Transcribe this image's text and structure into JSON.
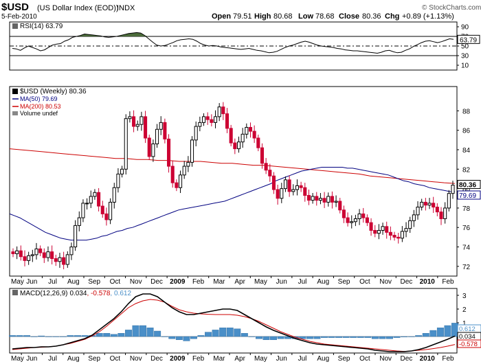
{
  "header": {
    "symbol": "$USD",
    "name": "(US Dollar Index (EOD))",
    "exchange": "INDX",
    "date": "5-Feb-2010",
    "watermark": "© StockCharts.com",
    "open_label": "Open",
    "open": "79.51",
    "high_label": "High",
    "high": "80.68",
    "low_label": "Low",
    "low": "78.68",
    "close_label": "Close",
    "close": "80.36",
    "chg_label": "Chg",
    "chg": "+0.89 (+1.13%)"
  },
  "chart_data": [
    {
      "type": "line",
      "panel": "rsi",
      "label": "RSI(14) 63.79",
      "ylim": [
        0,
        100
      ],
      "ticks": [
        "90",
        "70",
        "50",
        "30",
        "10"
      ],
      "tick_values": [
        90,
        70,
        50,
        30,
        10
      ],
      "guides": [
        70,
        50,
        30
      ],
      "current_label": "63.79",
      "current": 63.79,
      "values": [
        45,
        44,
        41,
        46,
        50,
        47,
        44,
        40,
        42,
        47,
        52,
        54,
        55,
        60,
        63,
        68,
        70,
        72,
        75,
        74,
        73,
        72,
        71,
        69,
        68,
        69,
        70,
        72,
        74,
        76,
        77,
        78,
        77,
        72,
        65,
        58,
        52,
        50,
        51,
        54,
        57,
        61,
        63,
        64,
        65,
        64,
        60,
        55,
        52,
        50,
        51,
        50,
        48,
        47,
        46,
        45,
        44,
        43,
        44,
        45,
        43,
        41,
        40,
        38,
        36,
        37,
        39,
        43,
        47,
        50,
        52,
        55,
        58,
        60,
        58,
        55,
        52,
        50,
        49,
        48,
        47,
        45,
        44,
        42,
        41,
        40,
        40,
        39,
        38,
        37,
        36,
        35,
        37,
        40,
        41,
        38,
        36,
        37,
        41,
        44,
        49,
        53,
        57,
        60,
        61,
        59,
        57,
        59,
        62,
        65,
        63.79
      ],
      "fill_above": 70,
      "color": "#000000",
      "fill_color": "#4b6b3a"
    },
    {
      "type": "candlestick",
      "panel": "price",
      "title": "$USD (Weekly) 80.36",
      "legend": [
        {
          "label": "MA(50) 79.69",
          "color": "#000080"
        },
        {
          "label": "MA(200) 80.53",
          "color": "#cc0000"
        },
        {
          "label": "Volume undef",
          "color": "#000000"
        }
      ],
      "ylim": [
        71,
        90.5
      ],
      "y_ticks": [
        "88",
        "86",
        "84",
        "82",
        "80",
        "78",
        "76",
        "74",
        "72"
      ],
      "y_tick_values": [
        88,
        86,
        84,
        82,
        80,
        78,
        76,
        74,
        72
      ],
      "close_tag": "80.36",
      "close_tag_value": 80.36,
      "ma50_tag": "79.69",
      "ma50_tag_value": 79.69,
      "bar_up_color": "#000000",
      "bar_down_color": "#cc0033",
      "closes": [
        73.3,
        73.6,
        73.0,
        72.6,
        73.1,
        73.2,
        73.8,
        73.4,
        72.9,
        73.5,
        72.8,
        72.5,
        72.9,
        72.2,
        73.2,
        74.0,
        76.2,
        77.0,
        78.5,
        78.5,
        79.2,
        79.6,
        78.2,
        77.4,
        76.8,
        78.6,
        80.1,
        81.5,
        82.0,
        87.2,
        87.4,
        86.4,
        86.6,
        87.4,
        85.2,
        83.3,
        84.6,
        86.1,
        86.8,
        85.1,
        82.3,
        80.6,
        80.1,
        81.4,
        82.3,
        82.7,
        85.0,
        86.4,
        86.8,
        87.4,
        87.1,
        86.8,
        87.4,
        88.4,
        87.7,
        86.2,
        84.7,
        84.1,
        84.8,
        85.6,
        86.3,
        85.9,
        85.2,
        84.2,
        82.6,
        81.9,
        81.3,
        79.9,
        79.0,
        80.0,
        80.9,
        79.7,
        79.9,
        80.3,
        80.1,
        79.3,
        78.8,
        79.2,
        78.8,
        79.0,
        78.6,
        79.2,
        78.6,
        78.7,
        77.8,
        77.0,
        76.5,
        76.6,
        76.9,
        77.4,
        77.0,
        76.5,
        75.7,
        75.4,
        75.7,
        76.1,
        75.5,
        75.2,
        75.0,
        74.9,
        75.6,
        75.9,
        76.7,
        77.3,
        78.1,
        78.6,
        78.3,
        78.5,
        78.1,
        77.6,
        76.9,
        78.0,
        79.5,
        80.36
      ],
      "ma50": [
        77.4,
        77.2,
        77.0,
        76.7,
        76.4,
        76.1,
        75.8,
        75.5,
        75.3,
        75.1,
        74.9,
        74.8,
        74.7,
        74.7,
        74.7,
        74.7,
        74.8,
        74.9,
        75.1,
        75.2,
        75.4,
        75.6,
        75.7,
        75.9,
        76.0,
        76.2,
        76.4,
        76.6,
        76.8,
        77.0,
        77.2,
        77.4,
        77.6,
        77.8,
        77.9,
        78.0,
        78.1,
        78.2,
        78.3,
        78.4,
        78.5,
        78.6,
        78.7,
        78.9,
        79.1,
        79.3,
        79.5,
        79.7,
        79.9,
        80.1,
        80.3,
        80.5,
        80.8,
        81.0,
        81.2,
        81.4,
        81.6,
        81.8,
        81.9,
        82.0,
        82.1,
        82.2,
        82.2,
        82.2,
        82.2,
        82.2,
        82.1,
        82.1,
        82.0,
        81.9,
        81.8,
        81.7,
        81.6,
        81.5,
        81.4,
        81.2,
        81.0,
        80.8,
        80.7,
        80.5,
        80.4,
        80.3,
        80.1,
        80.0,
        79.9,
        79.8,
        79.7,
        79.69
      ],
      "ma200": [
        84.1,
        84.0,
        83.9,
        83.8,
        83.7,
        83.6,
        83.5,
        83.4,
        83.3,
        83.2,
        83.1,
        83.1,
        83.0,
        83.0,
        82.9,
        82.9,
        82.8,
        82.8,
        82.8,
        82.7,
        82.6,
        82.6,
        82.5,
        82.4,
        82.4,
        82.3,
        82.2,
        82.1,
        82.0,
        81.9,
        81.8,
        81.7,
        81.6,
        81.5,
        81.3,
        81.2,
        81.1,
        81.0,
        80.9,
        80.8,
        80.7,
        80.6,
        80.53
      ],
      "x_ticks": [
        "May",
        "Jun",
        "Jul",
        "Aug",
        "Sep",
        "Oct",
        "Nov",
        "Dec",
        "2009",
        "Feb",
        "Mar",
        "Apr",
        "May",
        "Jun",
        "Jul",
        "Aug",
        "Sep",
        "Oct",
        "Nov",
        "Dec",
        "2010",
        "Feb"
      ],
      "bold_ticks": [
        "2009",
        "2010"
      ]
    },
    {
      "type": "line",
      "panel": "macd",
      "label_prefix": "MACD(12,26,9)",
      "label_macd": "0.034",
      "label_signal": ", -0.578",
      "label_hist": ", 0.612",
      "ylim": [
        -1.2,
        3.5
      ],
      "ticks": [
        "3",
        "2",
        "1"
      ],
      "tick_values": [
        3,
        2,
        1
      ],
      "zero_tick": "0",
      "tags": [
        "0.612",
        "0.034",
        "-0.578"
      ],
      "tag_values": [
        0.612,
        0.034,
        -0.578
      ],
      "macd_values": [
        -0.9,
        -0.85,
        -0.8,
        -0.8,
        -0.75,
        -0.75,
        -0.7,
        -0.6,
        -0.45,
        -0.3,
        -0.15,
        0.1,
        0.5,
        0.9,
        1.3,
        1.8,
        2.4,
        2.9,
        3.1,
        3.1,
        2.9,
        2.5,
        2.1,
        1.8,
        1.6,
        1.6,
        1.7,
        1.8,
        1.9,
        2.0,
        2.0,
        1.9,
        1.6,
        1.3,
        1.0,
        0.7,
        0.45,
        0.25,
        0.05,
        -0.15,
        -0.3,
        -0.45,
        -0.55,
        -0.6,
        -0.65,
        -0.7,
        -0.75,
        -0.8,
        -0.85,
        -0.9,
        -1.0,
        -1.05,
        -1.1,
        -1.1,
        -1.1,
        -1.05,
        -0.95,
        -0.8,
        -0.6,
        -0.4,
        -0.2,
        0.034
      ],
      "signal_values": [
        -0.95,
        -0.9,
        -0.85,
        -0.8,
        -0.78,
        -0.75,
        -0.7,
        -0.6,
        -0.5,
        -0.35,
        -0.2,
        0.05,
        0.35,
        0.75,
        1.2,
        1.65,
        2.1,
        2.4,
        2.6,
        2.7,
        2.65,
        2.5,
        2.2,
        1.95,
        1.8,
        1.7,
        1.65,
        1.62,
        1.6,
        1.6,
        1.6,
        1.55,
        1.45,
        1.3,
        1.1,
        0.85,
        0.6,
        0.35,
        0.15,
        -0.05,
        -0.2,
        -0.35,
        -0.45,
        -0.55,
        -0.6,
        -0.65,
        -0.7,
        -0.75,
        -0.8,
        -0.85,
        -0.9,
        -0.95,
        -1.0,
        -1.05,
        -1.08,
        -1.05,
        -1.0,
        -0.95,
        -0.88,
        -0.8,
        -0.7,
        -0.578
      ],
      "hist_values": [
        0.05,
        0.05,
        0.05,
        0.0,
        0.03,
        0.0,
        0.0,
        0.0,
        0.05,
        0.05,
        0.05,
        0.05,
        0.15,
        0.15,
        0.1,
        0.15,
        0.3,
        0.5,
        0.5,
        0.4,
        0.25,
        0.0,
        -0.1,
        -0.15,
        -0.2,
        -0.1,
        0.05,
        0.2,
        0.3,
        0.4,
        0.4,
        0.35,
        0.15,
        0.0,
        -0.1,
        -0.15,
        -0.15,
        -0.1,
        -0.1,
        -0.1,
        -0.1,
        -0.1,
        -0.1,
        -0.05,
        -0.05,
        -0.05,
        -0.05,
        -0.05,
        -0.05,
        -0.05,
        -0.1,
        -0.1,
        -0.1,
        -0.05,
        -0.02,
        0.0,
        0.05,
        0.15,
        0.28,
        0.4,
        0.5,
        0.612
      ],
      "hist_color": "#4a8fc8",
      "macd_color": "#000000",
      "signal_color": "#cc0000"
    }
  ]
}
